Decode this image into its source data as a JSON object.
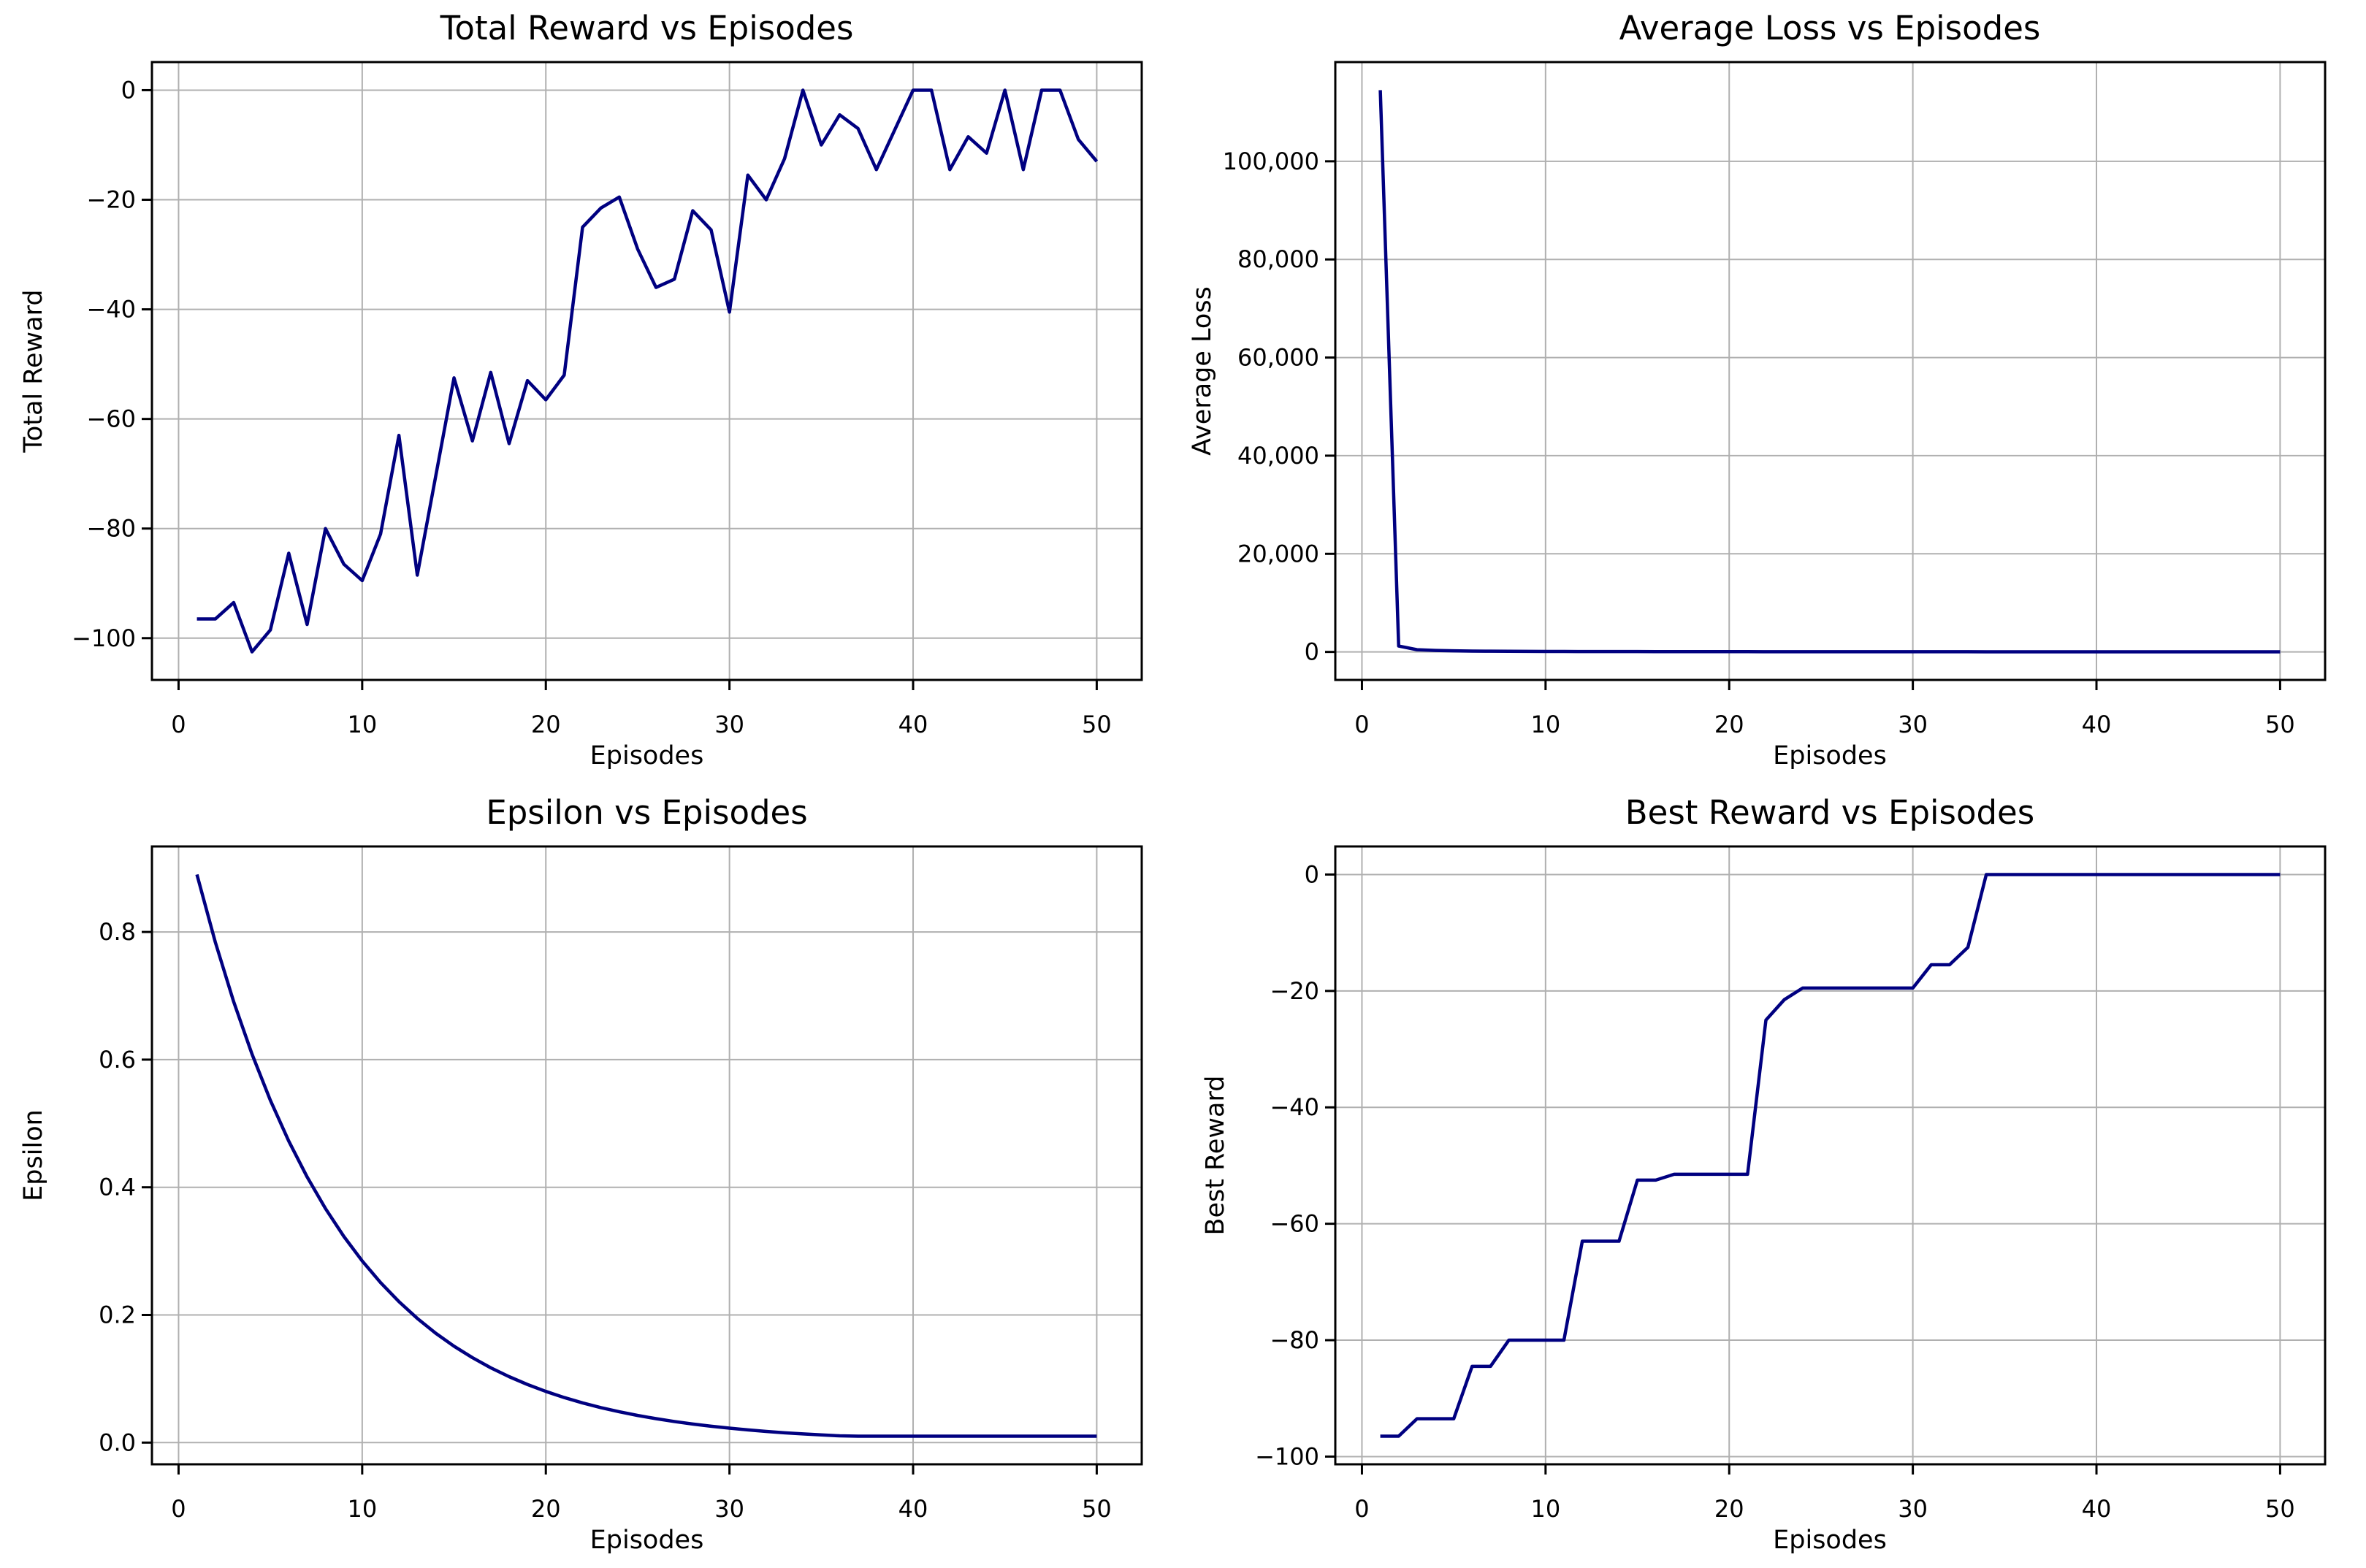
{
  "figure_colors": {
    "background": "#ffffff",
    "line": "#000080",
    "grid": "#b0b0b0",
    "spine": "#000000",
    "text": "#000000"
  },
  "episodes": [
    1,
    2,
    3,
    4,
    5,
    6,
    7,
    8,
    9,
    10,
    11,
    12,
    13,
    14,
    15,
    16,
    17,
    18,
    19,
    20,
    21,
    22,
    23,
    24,
    25,
    26,
    27,
    28,
    29,
    30,
    31,
    32,
    33,
    34,
    35,
    36,
    37,
    38,
    39,
    40,
    41,
    42,
    43,
    44,
    45,
    46,
    47,
    48,
    49,
    50
  ],
  "chart_data": [
    {
      "id": "total-reward",
      "type": "line",
      "title": "Total Reward vs Episodes",
      "xlabel": "Episodes",
      "ylabel": "Total Reward",
      "x_values_ref": "episodes",
      "values": [
        -96.5,
        -96.5,
        -93.5,
        -102.5,
        -98.5,
        -84.5,
        -97.5,
        -80,
        -86.5,
        -89.5,
        -81,
        -63,
        -88.5,
        -70.5,
        -52.5,
        -64,
        -51.5,
        -64.5,
        -53,
        -56.5,
        -52,
        -25,
        -21.5,
        -19.5,
        -29,
        -36,
        -34.5,
        -22,
        -25.5,
        -40.5,
        -15.5,
        -20,
        -12.5,
        0,
        -10,
        -4.5,
        -7,
        -14.5,
        -7.25,
        0,
        0,
        -14.5,
        -8.5,
        -11.5,
        0,
        -14.5,
        0,
        0,
        -9,
        -13
      ],
      "xticks": [
        0,
        10,
        20,
        30,
        40,
        50
      ],
      "xtick_labels": [
        "0",
        "10",
        "20",
        "30",
        "40",
        "50"
      ],
      "yticks": [
        0,
        -20,
        -40,
        -60,
        -80,
        -100
      ],
      "ytick_labels": [
        "0",
        "−20",
        "−40",
        "−60",
        "−80",
        "−100"
      ],
      "grid": true,
      "legend": "none"
    },
    {
      "id": "average-loss",
      "type": "line",
      "title": "Average Loss vs Episodes",
      "xlabel": "Episodes",
      "ylabel": "Average Loss",
      "x_values_ref": "episodes",
      "values": [
        114500,
        1200,
        450,
        300,
        220,
        180,
        150,
        130,
        115,
        100,
        92,
        85,
        80,
        75,
        70,
        66,
        62,
        58,
        55,
        52,
        50,
        48,
        46,
        44,
        42,
        40,
        38,
        37,
        36,
        35,
        34,
        33,
        32,
        31,
        30,
        29,
        28,
        27,
        26,
        25,
        24,
        23,
        22,
        21,
        20,
        19,
        18,
        17,
        16,
        15
      ],
      "xticks": [
        0,
        10,
        20,
        30,
        40,
        50
      ],
      "xtick_labels": [
        "0",
        "10",
        "20",
        "30",
        "40",
        "50"
      ],
      "yticks": [
        0,
        20000,
        40000,
        60000,
        80000,
        100000
      ],
      "ytick_labels": [
        "0",
        "20,000",
        "40,000",
        "60,000",
        "80,000",
        "100,000"
      ],
      "grid": true,
      "legend": "none"
    },
    {
      "id": "epsilon",
      "type": "line",
      "title": "Epsilon vs Episodes",
      "xlabel": "Episodes",
      "ylabel": "Epsilon",
      "x_values_ref": "episodes",
      "values": [
        0.89,
        0.7841,
        0.6908,
        0.6086,
        0.5362,
        0.4724,
        0.4162,
        0.3667,
        0.323,
        0.2846,
        0.2507,
        0.2209,
        0.1946,
        0.1714,
        0.151,
        0.1331,
        0.1172,
        0.1033,
        0.091,
        0.0802,
        0.0706,
        0.0622,
        0.0548,
        0.0483,
        0.0425,
        0.0375,
        0.033,
        0.0291,
        0.0256,
        0.0226,
        0.0199,
        0.0175,
        0.0154,
        0.0136,
        0.012,
        0.0106,
        0.01,
        0.01,
        0.01,
        0.01,
        0.01,
        0.01,
        0.01,
        0.01,
        0.01,
        0.01,
        0.01,
        0.01,
        0.01,
        0.01
      ],
      "xticks": [
        0,
        10,
        20,
        30,
        40,
        50
      ],
      "xtick_labels": [
        "0",
        "10",
        "20",
        "30",
        "40",
        "50"
      ],
      "yticks": [
        0,
        0.2,
        0.4,
        0.6,
        0.8
      ],
      "ytick_labels": [
        "0.0",
        "0.2",
        "0.4",
        "0.6",
        "0.8"
      ],
      "grid": true,
      "legend": "none"
    },
    {
      "id": "best-reward",
      "type": "line",
      "title": "Best Reward vs Episodes",
      "xlabel": "Episodes",
      "ylabel": "Best Reward",
      "x_values_ref": "episodes",
      "values": [
        -96.5,
        -96.5,
        -93.5,
        -93.5,
        -93.5,
        -84.5,
        -84.5,
        -80,
        -80,
        -80,
        -80,
        -63,
        -63,
        -63,
        -52.5,
        -52.5,
        -51.5,
        -51.5,
        -51.5,
        -51.5,
        -51.5,
        -25,
        -21.5,
        -19.5,
        -19.5,
        -19.5,
        -19.5,
        -19.5,
        -19.5,
        -19.5,
        -15.5,
        -15.5,
        -12.5,
        0,
        0,
        0,
        0,
        0,
        0,
        0,
        0,
        0,
        0,
        0,
        0,
        0,
        0,
        0,
        0,
        0
      ],
      "xticks": [
        0,
        10,
        20,
        30,
        40,
        50
      ],
      "xtick_labels": [
        "0",
        "10",
        "20",
        "30",
        "40",
        "50"
      ],
      "yticks": [
        0,
        -20,
        -40,
        -60,
        -80,
        -100
      ],
      "ytick_labels": [
        "0",
        "−20",
        "−40",
        "−60",
        "−80",
        "−100"
      ],
      "grid": true,
      "legend": "none"
    }
  ]
}
